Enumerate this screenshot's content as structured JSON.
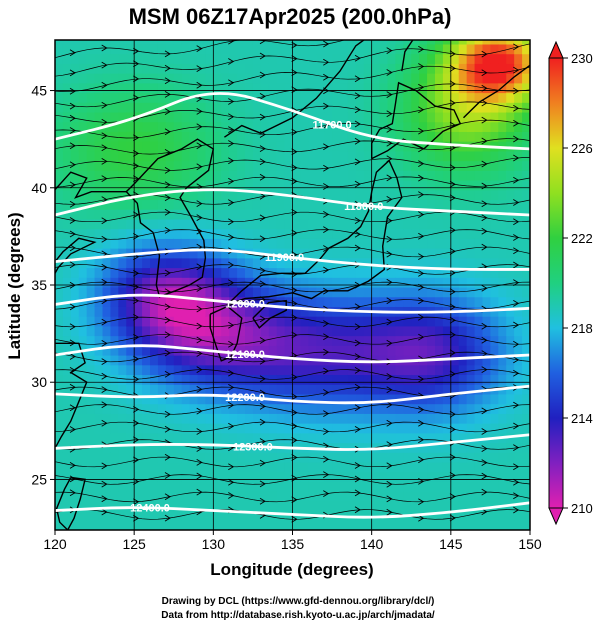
{
  "title": "MSM 06Z17Apr2025 (200.0hPa)",
  "credits": [
    "Drawing by DCL (https://www.gfd-dennou.org/library/dcl/)",
    "Data from http://database.rish.kyoto-u.ac.jp/arch/jmadata/"
  ],
  "chart_data": {
    "type": "heatmap",
    "title": "MSM 06Z17Apr2025 (200.0hPa)",
    "xlabel": "Longitude (degrees)",
    "ylabel": "Latitude  (degrees)",
    "xlim": [
      120,
      150
    ],
    "ylim": [
      22.4,
      47.6
    ],
    "x_ticks": [
      120,
      125,
      130,
      135,
      140,
      145,
      150
    ],
    "y_ticks": [
      25,
      30,
      35,
      40,
      45
    ],
    "grid": true,
    "colorbar": {
      "min": 210,
      "max": 230,
      "ticks": [
        210,
        214,
        218,
        222,
        226,
        230
      ],
      "stops": [
        {
          "value": 210,
          "color": "#e020b0"
        },
        {
          "value": 212,
          "color": "#8020c0"
        },
        {
          "value": 214,
          "color": "#2020c0"
        },
        {
          "value": 216,
          "color": "#2060e0"
        },
        {
          "value": 218,
          "color": "#20c0e0"
        },
        {
          "value": 220,
          "color": "#20d080"
        },
        {
          "value": 222,
          "color": "#30d040"
        },
        {
          "value": 224,
          "color": "#90e020"
        },
        {
          "value": 226,
          "color": "#e0e020"
        },
        {
          "value": 228,
          "color": "#f08020"
        },
        {
          "value": 230,
          "color": "#f02020"
        }
      ]
    },
    "field_blobs": [
      {
        "lon": 127,
        "lat": 34.5,
        "value": 213.0,
        "spread_lon": 4.0,
        "spread_lat": 2.6
      },
      {
        "lon": 130,
        "lat": 32.5,
        "value": 213.5,
        "spread_lon": 5.0,
        "spread_lat": 2.8
      },
      {
        "lon": 137,
        "lat": 31.5,
        "value": 214.0,
        "spread_lon": 6.0,
        "spread_lat": 3.0
      },
      {
        "lon": 144,
        "lat": 31.5,
        "value": 214.0,
        "spread_lon": 4.5,
        "spread_lat": 3.0
      },
      {
        "lon": 148,
        "lat": 46.5,
        "value": 229.0,
        "spread_lon": 3.0,
        "spread_lat": 2.0
      },
      {
        "lon": 146,
        "lat": 44.0,
        "value": 224.0,
        "spread_lon": 4.0,
        "spread_lat": 3.0
      },
      {
        "lon": 125,
        "lat": 42.0,
        "value": 222.0,
        "spread_lon": 5.0,
        "spread_lat": 3.0
      }
    ],
    "base_value": 219,
    "contours": [
      {
        "label": "11700.0",
        "label_lon": 137.5,
        "points": [
          [
            120,
            42.5
          ],
          [
            125,
            43.5
          ],
          [
            130,
            45.2
          ],
          [
            135,
            44.0
          ],
          [
            140,
            42.5
          ],
          [
            145,
            42.2
          ],
          [
            150,
            42.0
          ]
        ]
      },
      {
        "label": "11800.0",
        "label_lon": 139.5,
        "points": [
          [
            120,
            38.6
          ],
          [
            125,
            39.6
          ],
          [
            130,
            40.0
          ],
          [
            135,
            39.6
          ],
          [
            140,
            39.0
          ],
          [
            145,
            38.8
          ],
          [
            150,
            38.6
          ]
        ]
      },
      {
        "label": "11900.0",
        "label_lon": 134.5,
        "points": [
          [
            120,
            36.2
          ],
          [
            125,
            36.6
          ],
          [
            130,
            36.9
          ],
          [
            135,
            36.4
          ],
          [
            140,
            36.0
          ],
          [
            145,
            35.8
          ],
          [
            150,
            35.8
          ]
        ]
      },
      {
        "label": "12000.0",
        "label_lon": 132.0,
        "points": [
          [
            120,
            34.0
          ],
          [
            125,
            34.6
          ],
          [
            130,
            34.2
          ],
          [
            135,
            33.8
          ],
          [
            140,
            33.6
          ],
          [
            145,
            33.6
          ],
          [
            150,
            33.8
          ]
        ]
      },
      {
        "label": "12100.0",
        "label_lon": 132.0,
        "points": [
          [
            120,
            31.4
          ],
          [
            125,
            32.0
          ],
          [
            130,
            31.6
          ],
          [
            135,
            31.2
          ],
          [
            140,
            31.0
          ],
          [
            145,
            31.2
          ],
          [
            150,
            31.4
          ]
        ]
      },
      {
        "label": "12200.0",
        "label_lon": 132.0,
        "points": [
          [
            120,
            29.4
          ],
          [
            125,
            29.2
          ],
          [
            130,
            29.4
          ],
          [
            135,
            29.0
          ],
          [
            140,
            28.9
          ],
          [
            145,
            29.4
          ],
          [
            150,
            29.8
          ]
        ]
      },
      {
        "label": "12300.0",
        "label_lon": 132.5,
        "points": [
          [
            120,
            26.6
          ],
          [
            125,
            26.8
          ],
          [
            130,
            26.8
          ],
          [
            135,
            26.6
          ],
          [
            140,
            26.5
          ],
          [
            145,
            26.9
          ],
          [
            150,
            27.3
          ]
        ]
      },
      {
        "label": "12400.0",
        "label_lon": 126.0,
        "points": [
          [
            120,
            23.4
          ],
          [
            125,
            23.6
          ],
          [
            130,
            23.4
          ],
          [
            135,
            23.2
          ],
          [
            140,
            23.0
          ],
          [
            145,
            23.3
          ],
          [
            150,
            23.8
          ]
        ]
      }
    ],
    "vector_field": "eastward streamlines, generally zonal, converging toward the northeast corner",
    "coastlines": [
      {
        "name": "japan-honshu",
        "points": [
          [
            130.9,
            34.0
          ],
          [
            132.0,
            34.3
          ],
          [
            133.5,
            34.4
          ],
          [
            135.0,
            34.6
          ],
          [
            136.2,
            34.3
          ],
          [
            137.0,
            34.7
          ],
          [
            138.5,
            34.7
          ],
          [
            139.8,
            35.2
          ],
          [
            140.8,
            35.8
          ],
          [
            140.7,
            37.0
          ],
          [
            141.0,
            38.5
          ],
          [
            141.9,
            39.5
          ],
          [
            141.6,
            40.5
          ],
          [
            141.1,
            41.4
          ],
          [
            140.3,
            40.8
          ],
          [
            140.0,
            39.8
          ],
          [
            139.8,
            38.8
          ],
          [
            139.3,
            38.0
          ],
          [
            138.5,
            37.4
          ],
          [
            137.3,
            36.9
          ],
          [
            136.7,
            36.3
          ],
          [
            135.8,
            35.6
          ],
          [
            134.3,
            35.6
          ],
          [
            133.0,
            35.5
          ],
          [
            131.8,
            34.7
          ],
          [
            130.9,
            34.0
          ]
        ]
      },
      {
        "name": "japan-hokkaido",
        "points": [
          [
            140.0,
            41.5
          ],
          [
            141.0,
            41.9
          ],
          [
            142.0,
            42.5
          ],
          [
            143.3,
            42.0
          ],
          [
            144.5,
            42.9
          ],
          [
            145.6,
            43.3
          ],
          [
            145.2,
            44.0
          ],
          [
            144.0,
            44.2
          ],
          [
            142.8,
            45.0
          ],
          [
            141.7,
            45.4
          ],
          [
            141.5,
            44.3
          ],
          [
            141.3,
            43.3
          ],
          [
            140.5,
            43.0
          ],
          [
            140.0,
            42.3
          ],
          [
            140.0,
            41.5
          ]
        ]
      },
      {
        "name": "japan-kyushu",
        "points": [
          [
            129.8,
            33.5
          ],
          [
            130.9,
            33.9
          ],
          [
            131.8,
            33.3
          ],
          [
            131.5,
            32.0
          ],
          [
            131.1,
            31.3
          ],
          [
            130.5,
            31.1
          ],
          [
            130.2,
            31.8
          ],
          [
            129.8,
            32.8
          ],
          [
            129.8,
            33.5
          ]
        ]
      },
      {
        "name": "japan-shikoku",
        "points": [
          [
            132.5,
            33.3
          ],
          [
            133.5,
            34.1
          ],
          [
            134.6,
            34.2
          ],
          [
            134.6,
            33.7
          ],
          [
            133.6,
            33.3
          ],
          [
            132.9,
            32.8
          ],
          [
            132.5,
            33.3
          ]
        ]
      },
      {
        "name": "korea",
        "points": [
          [
            126.2,
            37.7
          ],
          [
            126.6,
            36.5
          ],
          [
            126.4,
            35.0
          ],
          [
            126.6,
            34.4
          ],
          [
            127.6,
            34.7
          ],
          [
            128.5,
            35.0
          ],
          [
            129.3,
            35.4
          ],
          [
            129.5,
            36.4
          ],
          [
            129.4,
            37.3
          ],
          [
            128.6,
            38.5
          ],
          [
            127.9,
            39.5
          ],
          [
            128.3,
            40.0
          ],
          [
            129.7,
            40.9
          ],
          [
            130.0,
            42.0
          ],
          [
            129.0,
            42.5
          ],
          [
            128.0,
            42.0
          ],
          [
            126.5,
            41.5
          ],
          [
            125.0,
            40.2
          ],
          [
            124.5,
            39.8
          ],
          [
            125.2,
            39.2
          ],
          [
            125.4,
            38.2
          ],
          [
            126.2,
            37.7
          ]
        ]
      },
      {
        "name": "china-coast-north",
        "points": [
          [
            120.0,
            39.9
          ],
          [
            121.0,
            40.8
          ],
          [
            122.0,
            40.5
          ],
          [
            121.3,
            39.5
          ],
          [
            122.3,
            39.8
          ],
          [
            123.5,
            39.8
          ],
          [
            124.5,
            39.8
          ]
        ]
      },
      {
        "name": "shandong",
        "points": [
          [
            120.0,
            36.2
          ],
          [
            120.5,
            36.7
          ],
          [
            121.5,
            37.4
          ],
          [
            122.5,
            37.2
          ],
          [
            121.0,
            36.6
          ],
          [
            120.2,
            35.9
          ],
          [
            120.0,
            35.6
          ]
        ]
      },
      {
        "name": "china-coast-south",
        "points": [
          [
            120.0,
            32.0
          ],
          [
            121.5,
            32.0
          ],
          [
            121.9,
            31.0
          ],
          [
            121.0,
            30.5
          ],
          [
            122.0,
            30.0
          ],
          [
            121.5,
            29.0
          ],
          [
            121.0,
            28.0
          ],
          [
            120.4,
            27.2
          ],
          [
            120.0,
            26.6
          ]
        ]
      },
      {
        "name": "taiwan",
        "points": [
          [
            121.0,
            25.1
          ],
          [
            121.9,
            25.0
          ],
          [
            121.6,
            24.0
          ],
          [
            121.2,
            23.0
          ],
          [
            120.8,
            22.4
          ],
          [
            120.3,
            22.8
          ],
          [
            120.1,
            23.5
          ],
          [
            120.6,
            24.5
          ],
          [
            121.0,
            25.1
          ]
        ]
      },
      {
        "name": "russia-coast",
        "points": [
          [
            130.7,
            42.6
          ],
          [
            131.8,
            43.2
          ],
          [
            133.0,
            42.8
          ],
          [
            135.0,
            43.6
          ],
          [
            136.5,
            44.6
          ],
          [
            138.0,
            46.0
          ],
          [
            139.0,
            47.3
          ],
          [
            139.5,
            47.6
          ]
        ]
      },
      {
        "name": "sakhalin",
        "points": [
          [
            141.9,
            46.0
          ],
          [
            142.1,
            47.0
          ],
          [
            142.6,
            47.6
          ]
        ]
      },
      {
        "name": "kurils-kamchatka",
        "points": [
          [
            145.8,
            43.6
          ],
          [
            146.8,
            44.4
          ],
          [
            148.0,
            45.0
          ],
          [
            149.0,
            45.7
          ],
          [
            150.0,
            46.3
          ]
        ]
      }
    ]
  }
}
